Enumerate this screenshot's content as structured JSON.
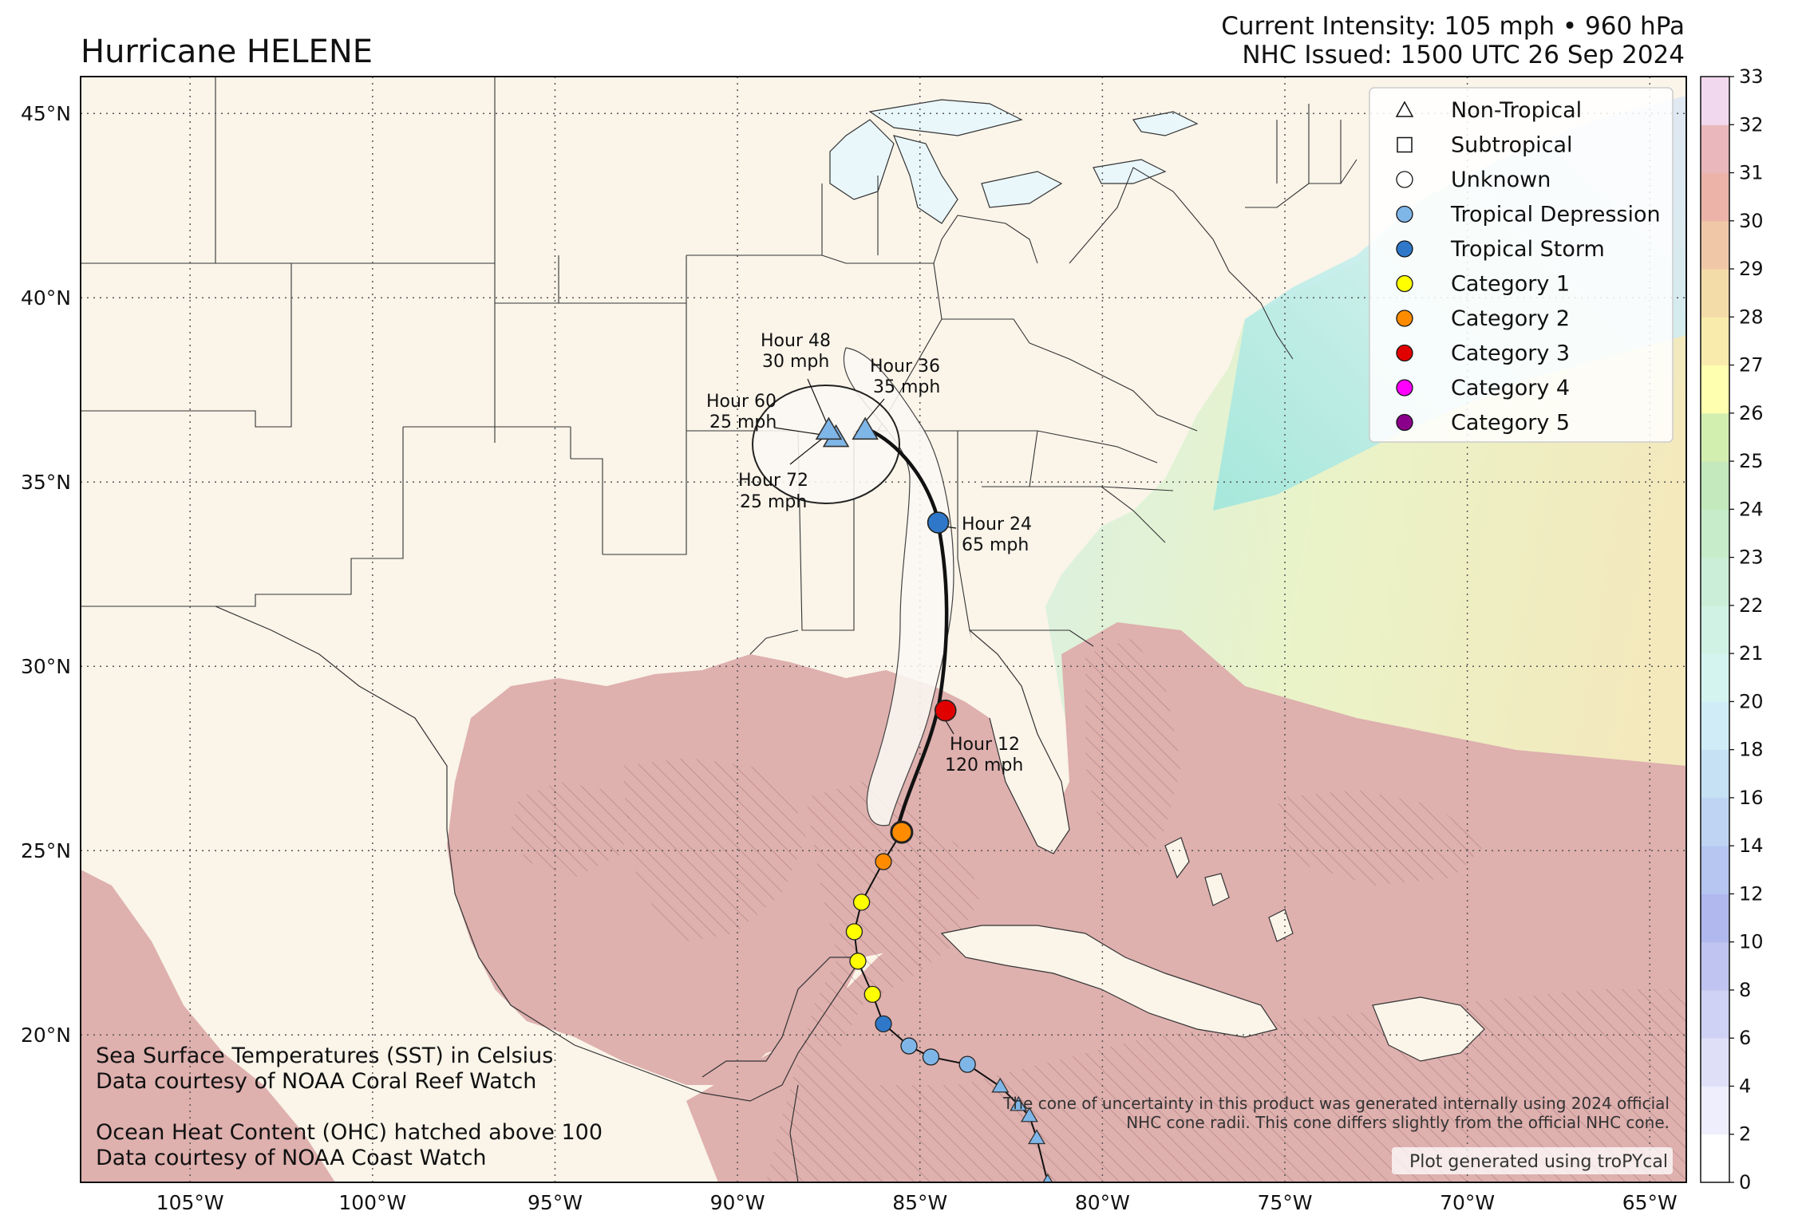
{
  "header": {
    "title": "Hurricane HELENE",
    "intensity": "Current Intensity: 105 mph • 960 hPa",
    "issued": "NHC Issued: 1500 UTC 26 Sep 2024"
  },
  "axes": {
    "lon_ticks": [
      "105°W",
      "100°W",
      "95°W",
      "90°W",
      "85°W",
      "80°W",
      "75°W",
      "70°W",
      "65°W"
    ],
    "lon_values": [
      -105,
      -100,
      -95,
      -90,
      -85,
      -80,
      -75,
      -70,
      -65
    ],
    "lat_ticks": [
      "45°N",
      "40°N",
      "35°N",
      "30°N",
      "25°N",
      "20°N"
    ],
    "lat_values": [
      45,
      40,
      35,
      30,
      25,
      20
    ],
    "lon_range": [
      -108,
      -64
    ],
    "lat_range": [
      16,
      46
    ],
    "grid": "dotted"
  },
  "legend": {
    "placement": "top-right",
    "items": [
      {
        "label": "Non-Tropical",
        "symbol": "triangle",
        "color": "#ffffff"
      },
      {
        "label": "Subtropical",
        "symbol": "square",
        "color": "#ffffff"
      },
      {
        "label": "Unknown",
        "symbol": "circle",
        "color": "#ffffff"
      },
      {
        "label": "Tropical Depression",
        "symbol": "circle",
        "color": "#7fb6e8"
      },
      {
        "label": "Tropical Storm",
        "symbol": "circle",
        "color": "#2f78c9"
      },
      {
        "label": "Category 1",
        "symbol": "circle",
        "color": "#ffff00"
      },
      {
        "label": "Category 2",
        "symbol": "circle",
        "color": "#ff8c00"
      },
      {
        "label": "Category 3",
        "symbol": "circle",
        "color": "#e00000"
      },
      {
        "label": "Category 4",
        "symbol": "circle",
        "color": "#ff00ff"
      },
      {
        "label": "Category 5",
        "symbol": "circle",
        "color": "#8b008b"
      }
    ]
  },
  "colorbar": {
    "labels": [
      "0",
      "2",
      "4",
      "6",
      "8",
      "10",
      "12",
      "14",
      "16",
      "18",
      "20",
      "21",
      "22",
      "23",
      "24",
      "25",
      "26",
      "27",
      "28",
      "29",
      "30",
      "31",
      "32",
      "33"
    ],
    "colors": [
      "#ffffff",
      "#eeeefc",
      "#dfe0f8",
      "#cfd2f4",
      "#bfc4f0",
      "#b0b8ee",
      "#b6c6f0",
      "#bed4f2",
      "#c6e0f4",
      "#d0ecf6",
      "#d4f4f0",
      "#d0f2e4",
      "#cbeed8",
      "#c6ecca",
      "#c4e9bc",
      "#d2efb0",
      "#ffffb0",
      "#f9ebac",
      "#f4dca8",
      "#f0c8a8",
      "#ecb4a8",
      "#eab8bc",
      "#f2d8ee"
    ]
  },
  "forecast_labels": [
    {
      "hour": "Hour 12",
      "wind": "120 mph"
    },
    {
      "hour": "Hour 24",
      "wind": "65 mph"
    },
    {
      "hour": "Hour 36",
      "wind": "35 mph"
    },
    {
      "hour": "Hour 48",
      "wind": "30 mph"
    },
    {
      "hour": "Hour 60",
      "wind": "25 mph"
    },
    {
      "hour": "Hour 72",
      "wind": "25 mph"
    }
  ],
  "forecast_points": [
    {
      "lon": -85.5,
      "lat": 25.5,
      "category": "Category 2",
      "symbol": "circle"
    },
    {
      "lon": -84.3,
      "lat": 28.8,
      "category": "Category 3",
      "symbol": "circle"
    },
    {
      "lon": -84.5,
      "lat": 33.9,
      "category": "Tropical Storm",
      "symbol": "circle"
    },
    {
      "lon": -86.5,
      "lat": 36.4,
      "category": "Non-Tropical",
      "symbol": "triangle"
    },
    {
      "lon": -87.3,
      "lat": 36.2,
      "category": "Non-Tropical",
      "symbol": "triangle"
    },
    {
      "lon": -87.5,
      "lat": 36.4,
      "category": "Non-Tropical",
      "symbol": "triangle"
    }
  ],
  "past_track": [
    {
      "lon": -81.5,
      "lat": 16.0,
      "category": "Non-Tropical",
      "symbol": "triangle"
    },
    {
      "lon": -81.8,
      "lat": 17.2,
      "category": "Non-Tropical",
      "symbol": "triangle"
    },
    {
      "lon": -82.0,
      "lat": 17.8,
      "category": "Non-Tropical",
      "symbol": "triangle"
    },
    {
      "lon": -82.3,
      "lat": 18.1,
      "category": "Non-Tropical",
      "symbol": "triangle"
    },
    {
      "lon": -82.8,
      "lat": 18.6,
      "category": "Non-Tropical",
      "symbol": "triangle"
    },
    {
      "lon": -83.7,
      "lat": 19.2,
      "category": "Tropical Depression",
      "symbol": "circle"
    },
    {
      "lon": -84.7,
      "lat": 19.4,
      "category": "Tropical Depression",
      "symbol": "circle"
    },
    {
      "lon": -85.3,
      "lat": 19.7,
      "category": "Tropical Depression",
      "symbol": "circle"
    },
    {
      "lon": -86.0,
      "lat": 20.3,
      "category": "Tropical Storm",
      "symbol": "circle"
    },
    {
      "lon": -86.3,
      "lat": 21.1,
      "category": "Category 1",
      "symbol": "circle"
    },
    {
      "lon": -86.7,
      "lat": 22.0,
      "category": "Category 1",
      "symbol": "circle"
    },
    {
      "lon": -86.8,
      "lat": 22.8,
      "category": "Category 1",
      "symbol": "circle"
    },
    {
      "lon": -86.6,
      "lat": 23.6,
      "category": "Category 1",
      "symbol": "circle"
    },
    {
      "lon": -86.0,
      "lat": 24.7,
      "category": "Category 2",
      "symbol": "circle"
    }
  ],
  "notes": {
    "sst_title": "Sea Surface Temperatures (SST) in Celsius",
    "sst_source": "Data courtesy of NOAA Coral Reef Watch",
    "ohc_title": "Ocean Heat Content (OHC) hatched above 100",
    "ohc_source": "Data courtesy of NOAA Coast Watch",
    "cone_note_1": "The cone of uncertainty in this product was generated internally using 2024 official",
    "cone_note_2": "NHC cone radii. This cone differs slightly from the official NHC cone.",
    "credit": "Plot generated using troPYcal"
  },
  "colors": {
    "land": "#faf4e9",
    "ocean_warm": "#deb0ae",
    "ocean_shelf": "#e7b9bb",
    "ocean_gulfstream": "#ecdcb2",
    "lake": "#e9f7fb",
    "cone": "#fbf7f3"
  }
}
